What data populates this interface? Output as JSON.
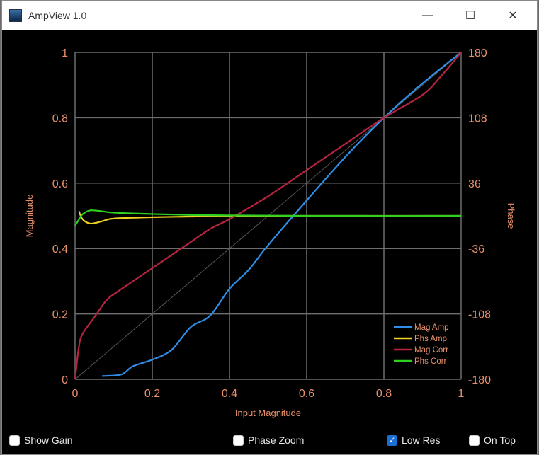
{
  "window": {
    "title": "AmpView 1.0",
    "minimize": "—",
    "maximize": "☐",
    "close": "✕"
  },
  "controls": [
    {
      "label": "Show Gain",
      "checked": false
    },
    {
      "label": "Phase Zoom",
      "checked": false
    },
    {
      "label": "Low Res",
      "checked": true
    },
    {
      "label": "On Top",
      "checked": false
    }
  ],
  "chart_data": {
    "type": "line",
    "xlabel": "Input Magnitude",
    "ylabel": "Magnitude",
    "y2label": "Phase",
    "xlim": [
      0,
      1
    ],
    "ylim": [
      0,
      1
    ],
    "y2lim": [
      -180,
      180
    ],
    "xticks": [
      "0",
      "0.2",
      "0.4",
      "0.6",
      "0.8",
      "1"
    ],
    "yticks": [
      "0",
      "0.2",
      "0.4",
      "0.6",
      "0.8",
      "1"
    ],
    "y2ticks": [
      "-180",
      "-108",
      "-36",
      "36",
      "108",
      "180"
    ],
    "grid": true,
    "legend": "bottom-right",
    "colors": {
      "background": "#000000",
      "grid": "#6e6e6e",
      "axis_text": "#e8906a",
      "diagonal": "#555555"
    },
    "series": [
      {
        "name": "Mag Amp",
        "color": "#2f8fe8",
        "axis": "left",
        "x": [
          0.07,
          0.12,
          0.15,
          0.2,
          0.25,
          0.3,
          0.35,
          0.4,
          0.45,
          0.5,
          0.6,
          0.7,
          0.8,
          0.9,
          1
        ],
        "y": [
          0.01,
          0.015,
          0.04,
          0.06,
          0.09,
          0.16,
          0.195,
          0.277,
          0.335,
          0.41,
          0.547,
          0.68,
          0.8,
          0.905,
          1
        ]
      },
      {
        "name": "Phs Amp",
        "color": "#f0d020",
        "axis": "right",
        "x": [
          0.01,
          0.02,
          0.04,
          0.07,
          0.1,
          0.2,
          0.3,
          0.4,
          0.6,
          0.8,
          1
        ],
        "y": [
          5,
          -4,
          -8.5,
          -6,
          -3,
          -1.5,
          -0.8,
          0,
          0,
          0,
          0
        ]
      },
      {
        "name": "Mag Corr",
        "color": "#b82440",
        "axis": "left",
        "x": [
          0,
          0.01,
          0.02,
          0.05,
          0.08,
          0.1,
          0.15,
          0.2,
          0.25,
          0.3,
          0.35,
          0.4,
          0.5,
          0.6,
          0.7,
          0.8,
          0.9,
          0.95,
          1
        ],
        "y": [
          0,
          0.1,
          0.14,
          0.19,
          0.24,
          0.26,
          0.3,
          0.34,
          0.38,
          0.42,
          0.46,
          0.49,
          0.56,
          0.64,
          0.72,
          0.8,
          0.87,
          0.93,
          1
        ]
      },
      {
        "name": "Phs Corr",
        "color": "#30d020",
        "axis": "right",
        "x": [
          0,
          0.01,
          0.02,
          0.04,
          0.07,
          0.1,
          0.2,
          0.3,
          0.4,
          0.6,
          1
        ],
        "y": [
          -11,
          -4,
          2,
          6,
          5,
          3.5,
          2,
          1,
          0.5,
          0,
          0
        ]
      }
    ]
  }
}
